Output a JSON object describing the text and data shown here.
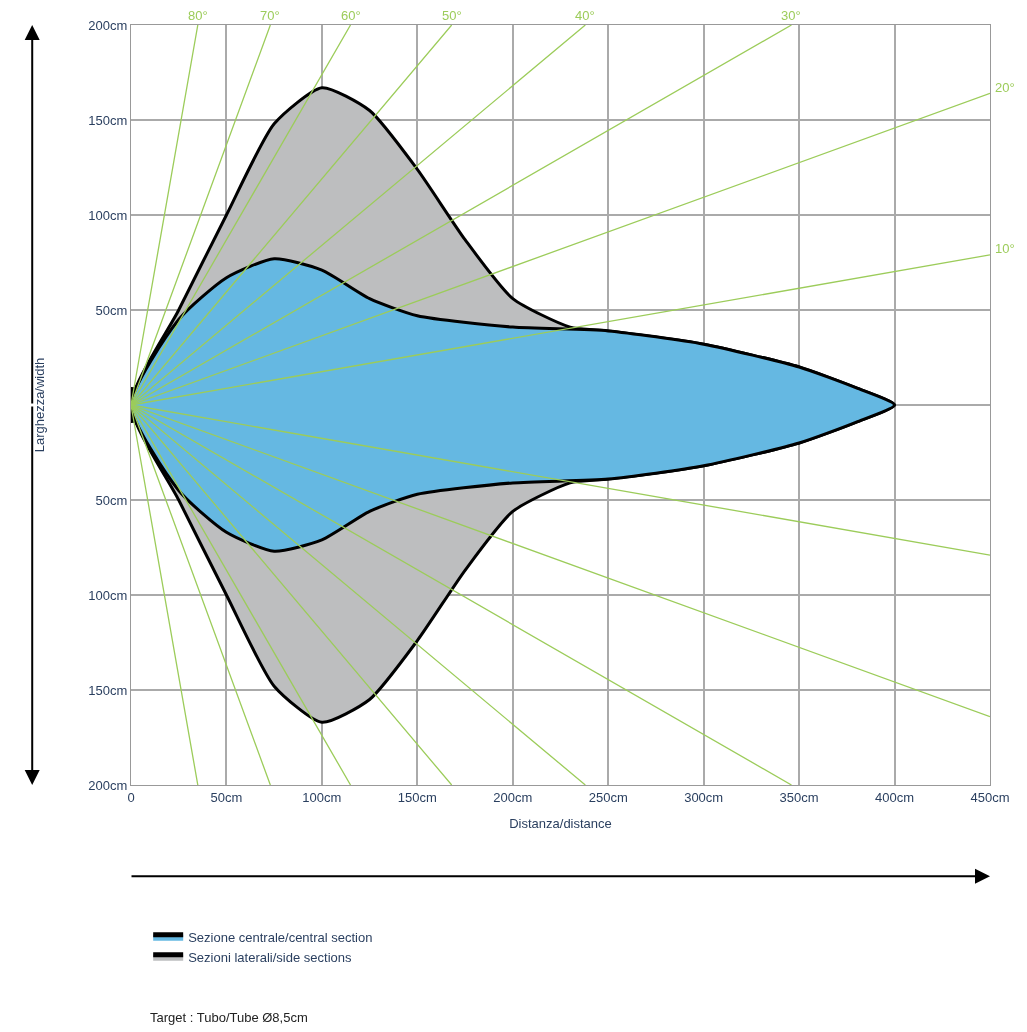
{
  "chart_data": {
    "type": "area",
    "xlabel": "Distanza/distance",
    "ylabel": "Larghezza/width",
    "xlim": [
      0,
      450
    ],
    "ylim": [
      -200,
      200
    ],
    "xticks": [
      {
        "value": 0,
        "label": "0"
      },
      {
        "value": 50,
        "label": "50cm"
      },
      {
        "value": 100,
        "label": "100cm"
      },
      {
        "value": 150,
        "label": "150cm"
      },
      {
        "value": 200,
        "label": "200cm"
      },
      {
        "value": 250,
        "label": "250cm"
      },
      {
        "value": 300,
        "label": "300cm"
      },
      {
        "value": 350,
        "label": "350cm"
      },
      {
        "value": 400,
        "label": "400cm"
      },
      {
        "value": 450,
        "label": "450cm"
      }
    ],
    "yticks": [
      {
        "value": 200,
        "label": "200cm"
      },
      {
        "value": 150,
        "label": "150cm"
      },
      {
        "value": 100,
        "label": "100cm"
      },
      {
        "value": 50,
        "label": "50cm"
      },
      {
        "value": 0,
        "label": null
      },
      {
        "value": -50,
        "label": "50cm"
      },
      {
        "value": -100,
        "label": "100cm"
      },
      {
        "value": -150,
        "label": "150cm"
      },
      {
        "value": -200,
        "label": "200cm"
      }
    ],
    "grid": true,
    "legend": "bottom left",
    "series": [
      {
        "type": "line",
        "name": "80°",
        "color": "#9ccc5a",
        "x": [
          35,
          0,
          35
        ],
        "values": [
          200,
          0,
          -200
        ]
      },
      {
        "type": "line",
        "name": "70°",
        "color": "#9ccc5a",
        "x": [
          73,
          0,
          73
        ],
        "values": [
          200,
          0,
          -200
        ]
      },
      {
        "type": "line",
        "name": "60°",
        "color": "#9ccc5a",
        "x": [
          115,
          0,
          115
        ],
        "values": [
          200,
          0,
          -200
        ]
      },
      {
        "type": "line",
        "name": "50°",
        "color": "#9ccc5a",
        "x": [
          168,
          0,
          168
        ],
        "values": [
          200,
          0,
          -200
        ]
      },
      {
        "type": "line",
        "name": "40°",
        "color": "#9ccc5a",
        "x": [
          238,
          0,
          238
        ],
        "values": [
          200,
          0,
          -200
        ]
      },
      {
        "type": "line",
        "name": "30°",
        "color": "#9ccc5a",
        "x": [
          346,
          0,
          346
        ],
        "values": [
          200,
          0,
          -200
        ]
      },
      {
        "type": "line",
        "name": "20°",
        "color": "#9ccc5a",
        "x": [
          450,
          0,
          450
        ],
        "values": [
          164,
          0,
          -164
        ]
      },
      {
        "type": "line",
        "name": "10°",
        "color": "#9ccc5a",
        "x": [
          450,
          0,
          450
        ],
        "values": [
          79,
          0,
          -79
        ]
      },
      {
        "name": "Sezioni laterali/side sections",
        "color": "#bdbebf",
        "x": [
          0,
          25,
          50,
          75,
          100,
          125,
          150,
          175,
          200,
          230,
          250,
          300,
          350,
          380,
          400,
          380,
          350,
          300,
          250,
          230,
          200,
          175,
          150,
          125,
          100,
          75,
          50,
          25,
          0
        ],
        "values": [
          0,
          50,
          100,
          148,
          167,
          155,
          124,
          87,
          56,
          41,
          39,
          32,
          20,
          9,
          0,
          -9,
          -20,
          -32,
          -39,
          -41,
          -56,
          -87,
          -124,
          -155,
          -167,
          -148,
          -100,
          -50,
          0
        ]
      },
      {
        "name": "Sezione centrale/central section",
        "color": "#65b8e2",
        "x": [
          0,
          25,
          50,
          75,
          100,
          125,
          150,
          200,
          250,
          300,
          350,
          380,
          400,
          380,
          350,
          300,
          250,
          200,
          150,
          125,
          100,
          75,
          50,
          25,
          0
        ],
        "values": [
          0,
          45,
          67,
          77,
          71,
          56,
          47,
          41,
          39,
          32,
          20,
          9,
          0,
          -9,
          -20,
          -32,
          -39,
          -41,
          -47,
          -56,
          -71,
          -77,
          -67,
          -45,
          0
        ]
      }
    ],
    "annotations": [
      "Target : Tubo/Tube Ø8,5cm"
    ]
  }
}
